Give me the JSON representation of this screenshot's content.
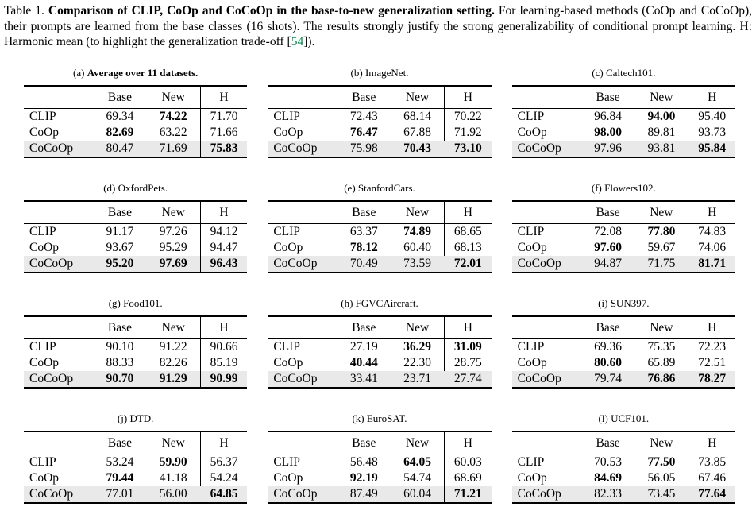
{
  "caption": {
    "label": "Table 1. ",
    "title_bold": "Comparison of CLIP, CoOp and CoCoOp in the base-to-new generalization setting.",
    "body_1": " For learning-based methods (CoOp and CoCoOp), their prompts are learned from the base classes (16 shots). The results strongly justify the strong generalizability of conditional prompt learning. H: Harmonic mean (to highlight the generalization trade-off [",
    "cite": "54",
    "body_2": "]).",
    "cite_color": "#009150"
  },
  "columns": [
    "Base",
    "New",
    "H"
  ],
  "row_labels": [
    "CLIP",
    "CoOp",
    "CoCoOp"
  ],
  "highlight_row_color": "#e9e9e9",
  "tables": [
    {
      "index": "(a)",
      "title": "Average over 11 datasets.",
      "title_bold": true,
      "vline_full": true,
      "rows": [
        {
          "label": "CLIP",
          "cells": [
            {
              "v": "69.34",
              "b": 0
            },
            {
              "v": "74.22",
              "b": 1
            },
            {
              "v": "71.70",
              "b": 0
            }
          ]
        },
        {
          "label": "CoOp",
          "cells": [
            {
              "v": "82.69",
              "b": 1
            },
            {
              "v": "63.22",
              "b": 0
            },
            {
              "v": "71.66",
              "b": 0
            }
          ]
        },
        {
          "label": "CoCoOp",
          "cells": [
            {
              "v": "80.47",
              "b": 0
            },
            {
              "v": "71.69",
              "b": 0
            },
            {
              "v": "75.83",
              "b": 1
            }
          ]
        }
      ]
    },
    {
      "index": "(b)",
      "title": "ImageNet.",
      "title_bold": false,
      "vline_full": false,
      "rows": [
        {
          "label": "CLIP",
          "cells": [
            {
              "v": "72.43",
              "b": 0
            },
            {
              "v": "68.14",
              "b": 0
            },
            {
              "v": "70.22",
              "b": 0
            }
          ]
        },
        {
          "label": "CoOp",
          "cells": [
            {
              "v": "76.47",
              "b": 1
            },
            {
              "v": "67.88",
              "b": 0
            },
            {
              "v": "71.92",
              "b": 0
            }
          ]
        },
        {
          "label": "CoCoOp",
          "cells": [
            {
              "v": "75.98",
              "b": 0
            },
            {
              "v": "70.43",
              "b": 1
            },
            {
              "v": "73.10",
              "b": 1
            }
          ]
        }
      ]
    },
    {
      "index": "(c)",
      "title": "Caltech101.",
      "title_bold": false,
      "vline_full": false,
      "rows": [
        {
          "label": "CLIP",
          "cells": [
            {
              "v": "96.84",
              "b": 0
            },
            {
              "v": "94.00",
              "b": 1
            },
            {
              "v": "95.40",
              "b": 0
            }
          ]
        },
        {
          "label": "CoOp",
          "cells": [
            {
              "v": "98.00",
              "b": 1
            },
            {
              "v": "89.81",
              "b": 0
            },
            {
              "v": "93.73",
              "b": 0
            }
          ]
        },
        {
          "label": "CoCoOp",
          "cells": [
            {
              "v": "97.96",
              "b": 0
            },
            {
              "v": "93.81",
              "b": 0
            },
            {
              "v": "95.84",
              "b": 1
            }
          ]
        }
      ]
    },
    {
      "index": "(d)",
      "title": "OxfordPets.",
      "title_bold": false,
      "vline_full": true,
      "rows": [
        {
          "label": "CLIP",
          "cells": [
            {
              "v": "91.17",
              "b": 0
            },
            {
              "v": "97.26",
              "b": 0
            },
            {
              "v": "94.12",
              "b": 0
            }
          ]
        },
        {
          "label": "CoOp",
          "cells": [
            {
              "v": "93.67",
              "b": 0
            },
            {
              "v": "95.29",
              "b": 0
            },
            {
              "v": "94.47",
              "b": 0
            }
          ]
        },
        {
          "label": "CoCoOp",
          "cells": [
            {
              "v": "95.20",
              "b": 1
            },
            {
              "v": "97.69",
              "b": 1
            },
            {
              "v": "96.43",
              "b": 1
            }
          ]
        }
      ]
    },
    {
      "index": "(e)",
      "title": "StanfordCars.",
      "title_bold": false,
      "vline_full": false,
      "rows": [
        {
          "label": "CLIP",
          "cells": [
            {
              "v": "63.37",
              "b": 0
            },
            {
              "v": "74.89",
              "b": 1
            },
            {
              "v": "68.65",
              "b": 0
            }
          ]
        },
        {
          "label": "CoOp",
          "cells": [
            {
              "v": "78.12",
              "b": 1
            },
            {
              "v": "60.40",
              "b": 0
            },
            {
              "v": "68.13",
              "b": 0
            }
          ]
        },
        {
          "label": "CoCoOp",
          "cells": [
            {
              "v": "70.49",
              "b": 0
            },
            {
              "v": "73.59",
              "b": 0
            },
            {
              "v": "72.01",
              "b": 1
            }
          ]
        }
      ]
    },
    {
      "index": "(f)",
      "title": "Flowers102.",
      "title_bold": false,
      "vline_full": false,
      "rows": [
        {
          "label": "CLIP",
          "cells": [
            {
              "v": "72.08",
              "b": 0
            },
            {
              "v": "77.80",
              "b": 1
            },
            {
              "v": "74.83",
              "b": 0
            }
          ]
        },
        {
          "label": "CoOp",
          "cells": [
            {
              "v": "97.60",
              "b": 1
            },
            {
              "v": "59.67",
              "b": 0
            },
            {
              "v": "74.06",
              "b": 0
            }
          ]
        },
        {
          "label": "CoCoOp",
          "cells": [
            {
              "v": "94.87",
              "b": 0
            },
            {
              "v": "71.75",
              "b": 0
            },
            {
              "v": "81.71",
              "b": 1
            }
          ]
        }
      ]
    },
    {
      "index": "(g)",
      "title": "Food101.",
      "title_bold": false,
      "vline_full": true,
      "rows": [
        {
          "label": "CLIP",
          "cells": [
            {
              "v": "90.10",
              "b": 0
            },
            {
              "v": "91.22",
              "b": 0
            },
            {
              "v": "90.66",
              "b": 0
            }
          ]
        },
        {
          "label": "CoOp",
          "cells": [
            {
              "v": "88.33",
              "b": 0
            },
            {
              "v": "82.26",
              "b": 0
            },
            {
              "v": "85.19",
              "b": 0
            }
          ]
        },
        {
          "label": "CoCoOp",
          "cells": [
            {
              "v": "90.70",
              "b": 1
            },
            {
              "v": "91.29",
              "b": 1
            },
            {
              "v": "90.99",
              "b": 1
            }
          ]
        }
      ]
    },
    {
      "index": "(h)",
      "title": "FGVCAircraft.",
      "title_bold": false,
      "vline_full": false,
      "rows": [
        {
          "label": "CLIP",
          "cells": [
            {
              "v": "27.19",
              "b": 0
            },
            {
              "v": "36.29",
              "b": 1
            },
            {
              "v": "31.09",
              "b": 1
            }
          ]
        },
        {
          "label": "CoOp",
          "cells": [
            {
              "v": "40.44",
              "b": 1
            },
            {
              "v": "22.30",
              "b": 0
            },
            {
              "v": "28.75",
              "b": 0
            }
          ]
        },
        {
          "label": "CoCoOp",
          "cells": [
            {
              "v": "33.41",
              "b": 0
            },
            {
              "v": "23.71",
              "b": 0
            },
            {
              "v": "27.74",
              "b": 0
            }
          ]
        }
      ]
    },
    {
      "index": "(i)",
      "title": "SUN397.",
      "title_bold": false,
      "vline_full": false,
      "rows": [
        {
          "label": "CLIP",
          "cells": [
            {
              "v": "69.36",
              "b": 0
            },
            {
              "v": "75.35",
              "b": 0
            },
            {
              "v": "72.23",
              "b": 0
            }
          ]
        },
        {
          "label": "CoOp",
          "cells": [
            {
              "v": "80.60",
              "b": 1
            },
            {
              "v": "65.89",
              "b": 0
            },
            {
              "v": "72.51",
              "b": 0
            }
          ]
        },
        {
          "label": "CoCoOp",
          "cells": [
            {
              "v": "79.74",
              "b": 0
            },
            {
              "v": "76.86",
              "b": 1
            },
            {
              "v": "78.27",
              "b": 1
            }
          ]
        }
      ]
    },
    {
      "index": "(j)",
      "title": "DTD.",
      "title_bold": false,
      "vline_full": false,
      "rows": [
        {
          "label": "CLIP",
          "cells": [
            {
              "v": "53.24",
              "b": 0
            },
            {
              "v": "59.90",
              "b": 1
            },
            {
              "v": "56.37",
              "b": 0
            }
          ]
        },
        {
          "label": "CoOp",
          "cells": [
            {
              "v": "79.44",
              "b": 1
            },
            {
              "v": "41.18",
              "b": 0
            },
            {
              "v": "54.24",
              "b": 0
            }
          ]
        },
        {
          "label": "CoCoOp",
          "cells": [
            {
              "v": "77.01",
              "b": 0
            },
            {
              "v": "56.00",
              "b": 0
            },
            {
              "v": "64.85",
              "b": 1
            }
          ]
        }
      ]
    },
    {
      "index": "(k)",
      "title": "EuroSAT.",
      "title_bold": false,
      "vline_full": true,
      "rows": [
        {
          "label": "CLIP",
          "cells": [
            {
              "v": "56.48",
              "b": 0
            },
            {
              "v": "64.05",
              "b": 1
            },
            {
              "v": "60.03",
              "b": 0
            }
          ]
        },
        {
          "label": "CoOp",
          "cells": [
            {
              "v": "92.19",
              "b": 1
            },
            {
              "v": "54.74",
              "b": 0
            },
            {
              "v": "68.69",
              "b": 0
            }
          ]
        },
        {
          "label": "CoCoOp",
          "cells": [
            {
              "v": "87.49",
              "b": 0
            },
            {
              "v": "60.04",
              "b": 0
            },
            {
              "v": "71.21",
              "b": 1
            }
          ]
        }
      ]
    },
    {
      "index": "(l)",
      "title": "UCF101.",
      "title_bold": false,
      "vline_full": false,
      "rows": [
        {
          "label": "CLIP",
          "cells": [
            {
              "v": "70.53",
              "b": 0
            },
            {
              "v": "77.50",
              "b": 1
            },
            {
              "v": "73.85",
              "b": 0
            }
          ]
        },
        {
          "label": "CoOp",
          "cells": [
            {
              "v": "84.69",
              "b": 1
            },
            {
              "v": "56.05",
              "b": 0
            },
            {
              "v": "67.46",
              "b": 0
            }
          ]
        },
        {
          "label": "CoCoOp",
          "cells": [
            {
              "v": "82.33",
              "b": 0
            },
            {
              "v": "73.45",
              "b": 0
            },
            {
              "v": "77.64",
              "b": 1
            }
          ]
        }
      ]
    }
  ]
}
